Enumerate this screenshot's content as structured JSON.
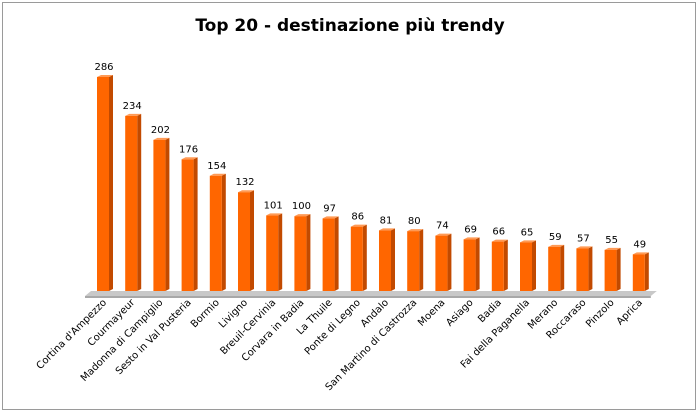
{
  "chart_data": {
    "type": "bar",
    "title": "Top 20 - destinazione più trendy",
    "xlabel": "",
    "ylabel": "",
    "ylim": [
      0,
      286
    ],
    "grid": false,
    "legend": "none",
    "bar_color": "#ff6600",
    "bar_shadow_color": "#c24a00",
    "floor_color": "#c8c8c8",
    "categories": [
      "Cortina d'Ampezzo",
      "Courmayeur",
      "Madonna di Campiglio",
      "Sesto in Val Pusteria",
      "Bormio",
      "Livigno",
      "Breuil-Cervinia",
      "Corvara in Badia",
      "La Thuile",
      "Ponte di Legno",
      "Andalo",
      "San Martino di Castrozza",
      "Moena",
      "Asiago",
      "Badia",
      "Fai della Paganella",
      "Merano",
      "Roccaraso",
      "Pinzolo",
      "Aprica"
    ],
    "values": [
      286,
      234,
      202,
      176,
      154,
      132,
      101,
      100,
      97,
      86,
      81,
      80,
      74,
      69,
      66,
      65,
      59,
      57,
      55,
      49
    ]
  }
}
